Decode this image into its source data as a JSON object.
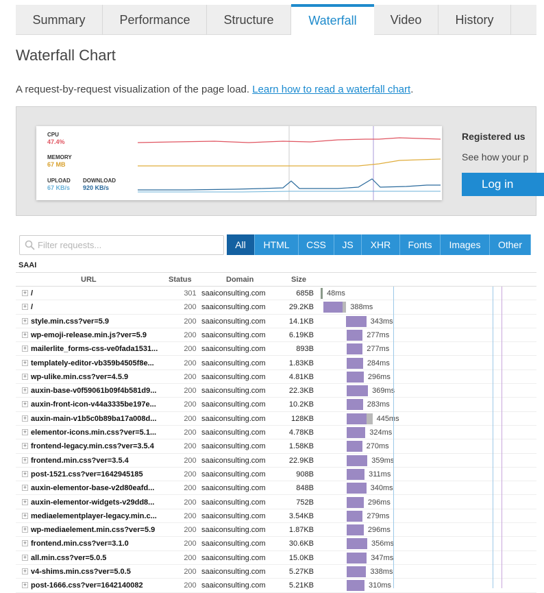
{
  "tabs": [
    {
      "label": "Summary",
      "active": false
    },
    {
      "label": "Performance",
      "active": false
    },
    {
      "label": "Structure",
      "active": false
    },
    {
      "label": "Waterfall",
      "active": true
    },
    {
      "label": "Video",
      "active": false
    },
    {
      "label": "History",
      "active": false
    }
  ],
  "page": {
    "title": "Waterfall Chart",
    "intro": "A request-by-request visualization of the page load.",
    "intro_link": "Learn how to read a waterfall chart",
    "intro_end": "."
  },
  "timeline": {
    "cpu_label": "CPU",
    "cpu_value": "47.4%",
    "memory_label": "MEMORY",
    "memory_value": "67 MB",
    "upload_label": "UPLOAD",
    "upload_value": "67 KB/s",
    "download_label": "DOWNLOAD",
    "download_value": "920 KB/s",
    "colors": {
      "cpu": "#e05561",
      "memory": "#e0ad3c",
      "upload": "#6bb2d8",
      "download": "#2a6a9c"
    }
  },
  "promo": {
    "title": "Registered us",
    "text": "See how your p",
    "login_label": "Log in"
  },
  "filter": {
    "placeholder": "Filter requests...",
    "buttons": [
      {
        "label": "All",
        "active": true
      },
      {
        "label": "HTML",
        "active": false
      },
      {
        "label": "CSS",
        "active": false
      },
      {
        "label": "JS",
        "active": false
      },
      {
        "label": "XHR",
        "active": false
      },
      {
        "label": "Fonts",
        "active": false
      },
      {
        "label": "Images",
        "active": false
      },
      {
        "label": "Other",
        "active": false
      }
    ]
  },
  "table": {
    "group": "SAAI",
    "headers": {
      "url": "URL",
      "status": "Status",
      "domain": "Domain",
      "size": "Size"
    },
    "rows": [
      {
        "url": "/",
        "status": "301",
        "domain": "saaiconsulting.com",
        "size": "685B",
        "start": 0,
        "wait": 0,
        "recv": 48,
        "timing": "48ms",
        "redirect": true
      },
      {
        "url": "/",
        "status": "200",
        "domain": "saaiconsulting.com",
        "size": "29.2KB",
        "start": 48,
        "wait": 330,
        "recv": 58,
        "timing": "388ms"
      },
      {
        "url": "style.min.css?ver=5.9",
        "status": "200",
        "domain": "saaiconsulting.com",
        "size": "14.1KB",
        "start": 436,
        "wait": 343,
        "recv": 0,
        "timing": "343ms"
      },
      {
        "url": "wp-emoji-release.min.js?ver=5.9",
        "status": "200",
        "domain": "saaiconsulting.com",
        "size": "6.19KB",
        "start": 439,
        "wait": 277,
        "recv": 0,
        "timing": "277ms"
      },
      {
        "url": "mailerlite_forms-css-ve0fada1531...",
        "status": "200",
        "domain": "saaiconsulting.com",
        "size": "893B",
        "start": 439,
        "wait": 277,
        "recv": 0,
        "timing": "277ms"
      },
      {
        "url": "templately-editor-vb359b4505f8e...",
        "status": "200",
        "domain": "saaiconsulting.com",
        "size": "1.83KB",
        "start": 439,
        "wait": 284,
        "recv": 0,
        "timing": "284ms"
      },
      {
        "url": "wp-ulike.min.css?ver=4.5.9",
        "status": "200",
        "domain": "saaiconsulting.com",
        "size": "4.81KB",
        "start": 439,
        "wait": 296,
        "recv": 0,
        "timing": "296ms"
      },
      {
        "url": "auxin-base-v0f59061b09f4b581d9...",
        "status": "200",
        "domain": "saaiconsulting.com",
        "size": "22.3KB",
        "start": 439,
        "wait": 369,
        "recv": 0,
        "timing": "369ms"
      },
      {
        "url": "auxin-front-icon-v44a3335be197e...",
        "status": "200",
        "domain": "saaiconsulting.com",
        "size": "10.2KB",
        "start": 439,
        "wait": 283,
        "recv": 0,
        "timing": "283ms"
      },
      {
        "url": "auxin-main-v1b5c0b89ba17a008d...",
        "status": "200",
        "domain": "saaiconsulting.com",
        "size": "128KB",
        "start": 439,
        "wait": 340,
        "recv": 105,
        "timing": "445ms"
      },
      {
        "url": "elementor-icons.min.css?ver=5.1...",
        "status": "200",
        "domain": "saaiconsulting.com",
        "size": "4.78KB",
        "start": 439,
        "wait": 324,
        "recv": 0,
        "timing": "324ms"
      },
      {
        "url": "frontend-legacy.min.css?ver=3.5.4",
        "status": "200",
        "domain": "saaiconsulting.com",
        "size": "1.58KB",
        "start": 439,
        "wait": 270,
        "recv": 0,
        "timing": "270ms"
      },
      {
        "url": "frontend.min.css?ver=3.5.4",
        "status": "200",
        "domain": "saaiconsulting.com",
        "size": "22.9KB",
        "start": 439,
        "wait": 359,
        "recv": 0,
        "timing": "359ms"
      },
      {
        "url": "post-1521.css?ver=1642945185",
        "status": "200",
        "domain": "saaiconsulting.com",
        "size": "908B",
        "start": 439,
        "wait": 311,
        "recv": 0,
        "timing": "311ms"
      },
      {
        "url": "auxin-elementor-base-v2d80eafd...",
        "status": "200",
        "domain": "saaiconsulting.com",
        "size": "848B",
        "start": 439,
        "wait": 340,
        "recv": 0,
        "timing": "340ms"
      },
      {
        "url": "auxin-elementor-widgets-v29dd8...",
        "status": "200",
        "domain": "saaiconsulting.com",
        "size": "752B",
        "start": 439,
        "wait": 296,
        "recv": 0,
        "timing": "296ms"
      },
      {
        "url": "mediaelementplayer-legacy.min.c...",
        "status": "200",
        "domain": "saaiconsulting.com",
        "size": "3.54KB",
        "start": 439,
        "wait": 279,
        "recv": 0,
        "timing": "279ms"
      },
      {
        "url": "wp-mediaelement.min.css?ver=5.9",
        "status": "200",
        "domain": "saaiconsulting.com",
        "size": "1.87KB",
        "start": 439,
        "wait": 296,
        "recv": 0,
        "timing": "296ms"
      },
      {
        "url": "frontend.min.css?ver=3.1.0",
        "status": "200",
        "domain": "saaiconsulting.com",
        "size": "30.6KB",
        "start": 439,
        "wait": 356,
        "recv": 0,
        "timing": "356ms"
      },
      {
        "url": "all.min.css?ver=5.0.5",
        "status": "200",
        "domain": "saaiconsulting.com",
        "size": "15.0KB",
        "start": 439,
        "wait": 347,
        "recv": 0,
        "timing": "347ms"
      },
      {
        "url": "v4-shims.min.css?ver=5.0.5",
        "status": "200",
        "domain": "saaiconsulting.com",
        "size": "5.27KB",
        "start": 439,
        "wait": 338,
        "recv": 0,
        "timing": "338ms"
      },
      {
        "url": "post-1666.css?ver=1642140082",
        "status": "200",
        "domain": "saaiconsulting.com",
        "size": "5.21KB",
        "start": 439,
        "wait": 310,
        "recv": 0,
        "timing": "310ms"
      }
    ]
  }
}
